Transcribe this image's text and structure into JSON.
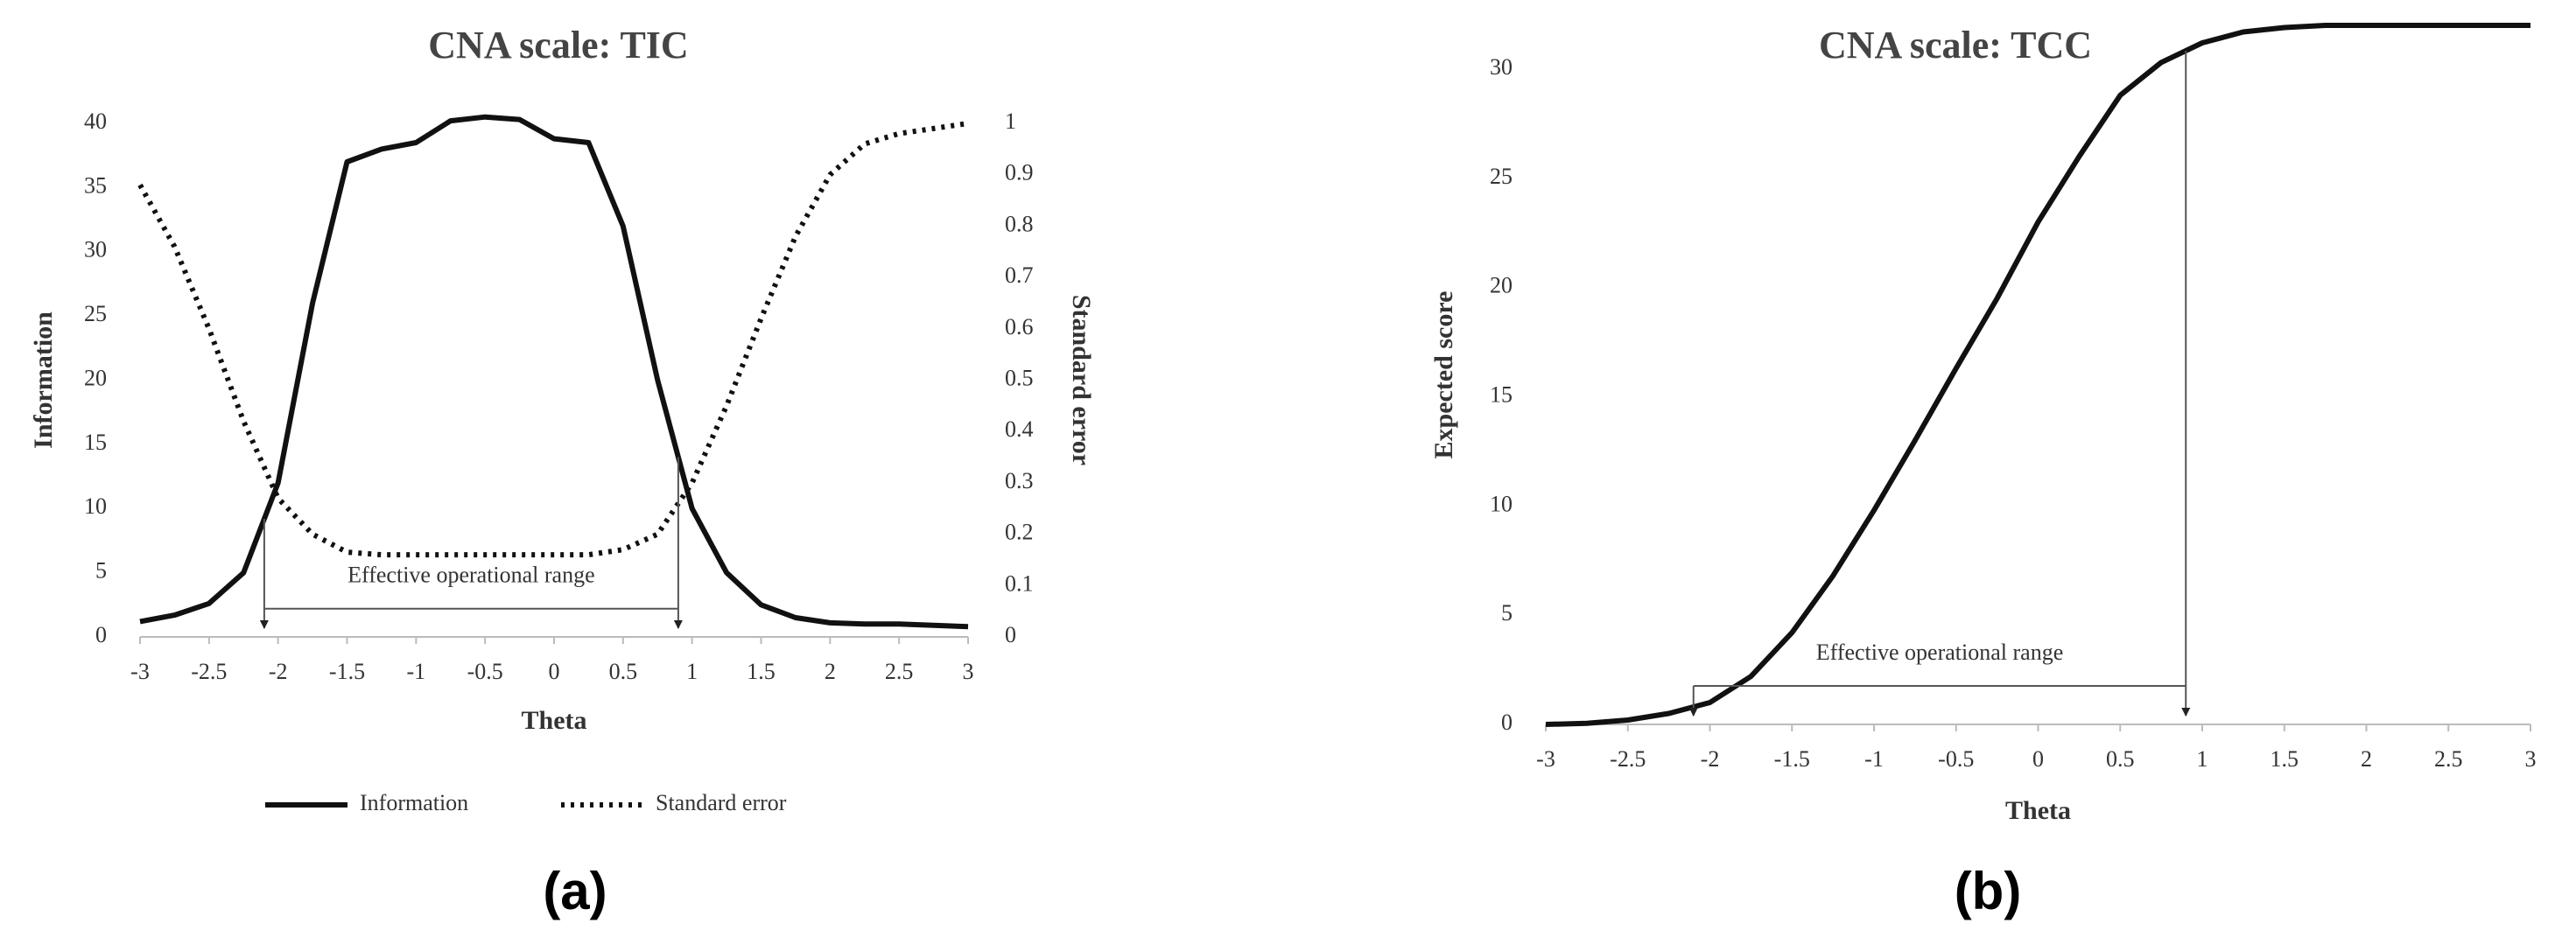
{
  "chart_data": [
    {
      "type": "line",
      "title": "CNA scale: TIC",
      "panel_label": "(a)",
      "xlabel": "Theta",
      "ylabel": "Information",
      "y2label": "Standard error",
      "x": [
        -3,
        -2.75,
        -2.5,
        -2.25,
        -2,
        -1.75,
        -1.5,
        -1.25,
        -1,
        -0.75,
        -0.5,
        -0.25,
        0,
        0.25,
        0.5,
        0.75,
        1,
        1.25,
        1.5,
        1.75,
        2,
        2.25,
        2.5,
        2.75,
        3
      ],
      "series": [
        {
          "name": "Information",
          "color": "#111111",
          "style": "solid",
          "values": [
            1.2,
            1.7,
            2.6,
            5,
            12,
            26,
            37,
            38,
            38.5,
            40.2,
            40.5,
            40.3,
            38.8,
            38.5,
            32,
            20,
            10,
            5,
            2.5,
            1.5,
            1.1,
            1,
            1,
            0.9,
            0.8
          ]
        },
        {
          "name": "Standard error",
          "color": "#111111",
          "style": "dotted",
          "axis": "y2",
          "values": [
            0.88,
            0.76,
            0.6,
            0.42,
            0.27,
            0.2,
            0.165,
            0.16,
            0.16,
            0.16,
            0.16,
            0.16,
            0.16,
            0.16,
            0.17,
            0.2,
            0.3,
            0.45,
            0.62,
            0.78,
            0.9,
            0.96,
            0.98,
            0.99,
            1.0
          ]
        }
      ],
      "xlim": [
        -3,
        3
      ],
      "xticks": [
        -3,
        -2.5,
        -2,
        -1.5,
        -1,
        -0.5,
        0,
        0.5,
        1,
        1.5,
        2,
        2.5,
        3
      ],
      "ylim": [
        0,
        40
      ],
      "yticks": [
        0,
        5,
        10,
        15,
        20,
        25,
        30,
        35,
        40
      ],
      "y2lim": [
        0,
        1
      ],
      "y2ticks": [
        0,
        0.1,
        0.2,
        0.3,
        0.4,
        0.5,
        0.6,
        0.7,
        0.8,
        0.9,
        1
      ],
      "annotation": {
        "text": "Effective operational range",
        "x": [
          -2.1,
          0.9
        ]
      },
      "legend": "bottom"
    },
    {
      "type": "line",
      "title": "CNA scale: TCC",
      "panel_label": "(b)",
      "xlabel": "Theta",
      "ylabel": "Expected score",
      "x": [
        -3,
        -2.75,
        -2.5,
        -2.25,
        -2,
        -1.75,
        -1.5,
        -1.25,
        -1,
        -0.75,
        -0.5,
        -0.25,
        0,
        0.25,
        0.5,
        0.75,
        1,
        1.25,
        1.5,
        1.75,
        2,
        2.25,
        2.5,
        2.75,
        3
      ],
      "series": [
        {
          "color": "#111111",
          "style": "solid",
          "values": [
            0,
            0.05,
            0.2,
            0.5,
            1.0,
            2.2,
            4.2,
            6.8,
            9.8,
            13,
            16.3,
            19.5,
            23,
            26,
            28.8,
            30.3,
            31.2,
            31.7,
            31.9,
            32,
            32,
            32,
            32,
            32,
            32
          ]
        }
      ],
      "xlim": [
        -3,
        3
      ],
      "xticks": [
        -3,
        -2.5,
        -2,
        -1.5,
        -1,
        -0.5,
        0,
        0.5,
        1,
        1.5,
        2,
        2.5,
        3
      ],
      "ylim": [
        0,
        32
      ],
      "yticks": [
        0,
        5,
        10,
        15,
        20,
        25,
        30
      ],
      "annotation": {
        "text": "Effective operational range",
        "x": [
          -2.1,
          0.9
        ]
      }
    }
  ]
}
